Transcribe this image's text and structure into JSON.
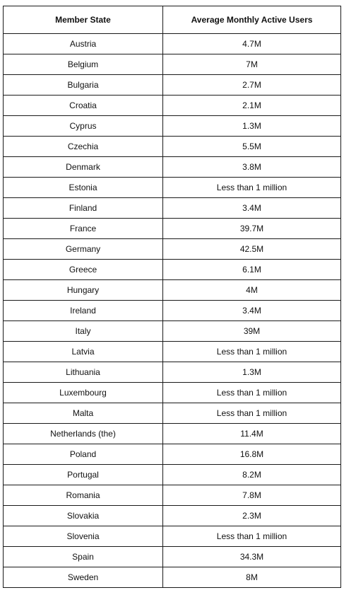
{
  "table": {
    "headers": [
      "Member State",
      "Average Monthly Active Users"
    ],
    "rows": [
      [
        "Austria",
        "4.7M"
      ],
      [
        "Belgium",
        "7M"
      ],
      [
        "Bulgaria",
        "2.7M"
      ],
      [
        "Croatia",
        "2.1M"
      ],
      [
        "Cyprus",
        "1.3M"
      ],
      [
        "Czechia",
        "5.5M"
      ],
      [
        "Denmark",
        "3.8M"
      ],
      [
        "Estonia",
        "Less than 1 million"
      ],
      [
        "Finland",
        "3.4M"
      ],
      [
        "France",
        "39.7M"
      ],
      [
        "Germany",
        "42.5M"
      ],
      [
        "Greece",
        "6.1M"
      ],
      [
        "Hungary",
        "4M"
      ],
      [
        "Ireland",
        "3.4M"
      ],
      [
        "Italy",
        "39M"
      ],
      [
        "Latvia",
        "Less than 1 million"
      ],
      [
        "Lithuania",
        "1.3M"
      ],
      [
        "Luxembourg",
        "Less than 1 million"
      ],
      [
        "Malta",
        "Less than 1 million"
      ],
      [
        "Netherlands (the)",
        "11.4M"
      ],
      [
        "Poland",
        "16.8M"
      ],
      [
        "Portugal",
        "8.2M"
      ],
      [
        "Romania",
        "7.8M"
      ],
      [
        "Slovakia",
        "2.3M"
      ],
      [
        "Slovenia",
        "Less than 1 million"
      ],
      [
        "Spain",
        "34.3M"
      ],
      [
        "Sweden",
        "8M"
      ]
    ]
  },
  "colors": {
    "border": "#1a1a1a",
    "text": "#111111",
    "background": "#ffffff"
  }
}
